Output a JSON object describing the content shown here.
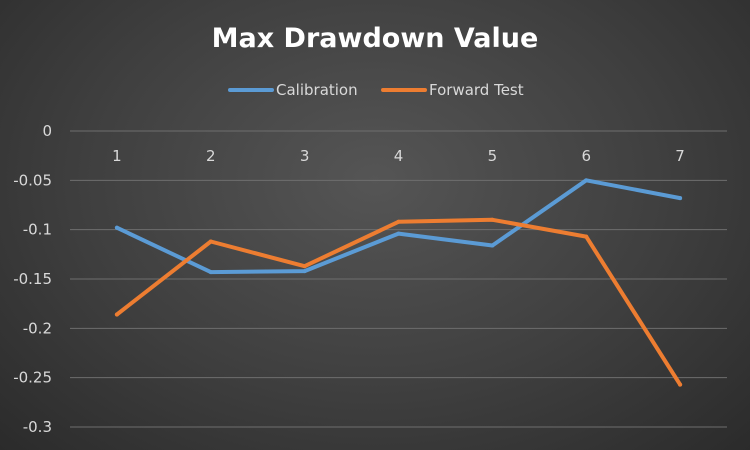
{
  "chart_data": {
    "type": "line",
    "title": "Max Drawdown Value",
    "xlabel": "",
    "ylabel": "",
    "x": [
      "1",
      "2",
      "3",
      "4",
      "5",
      "6",
      "7"
    ],
    "y_ticks": [
      "0",
      "-0.05",
      "-0.1",
      "-0.15",
      "-0.2",
      "-0.25",
      "-0.3"
    ],
    "ylim": [
      -0.3,
      0
    ],
    "grid": true,
    "legend_position": "top",
    "x_axis_position": "top",
    "series": [
      {
        "name": "Calibration",
        "color": "#5b9bd5",
        "values": [
          -0.098,
          -0.143,
          -0.142,
          -0.104,
          -0.116,
          -0.05,
          -0.068
        ]
      },
      {
        "name": "Forward Test",
        "color": "#ed7d31",
        "values": [
          -0.186,
          -0.112,
          -0.137,
          -0.092,
          -0.09,
          -0.107,
          -0.257
        ]
      }
    ]
  }
}
